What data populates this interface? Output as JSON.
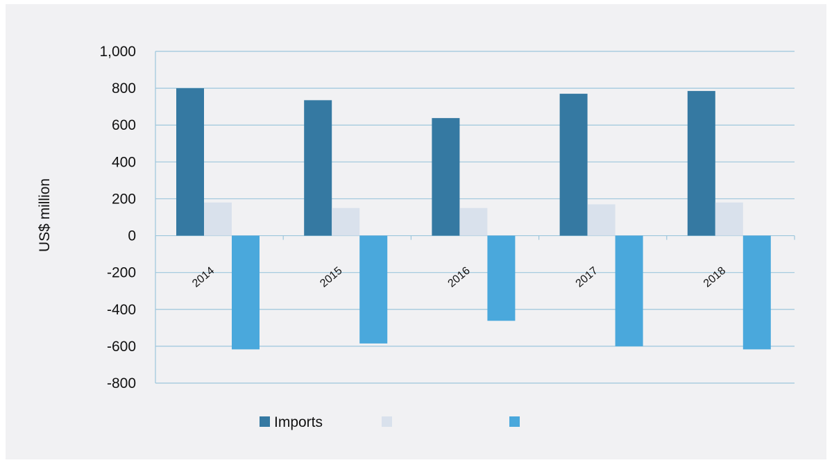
{
  "chart_data": {
    "type": "bar",
    "title": "",
    "xlabel": "",
    "ylabel": "US$ million",
    "categories": [
      "2014",
      "2015",
      "2016",
      "2017",
      "2018"
    ],
    "series": [
      {
        "name": "Imports",
        "color": "#3579a2",
        "values": [
          800,
          735,
          638,
          770,
          785
        ]
      },
      {
        "name": "",
        "color": "#d9e1ec",
        "values": [
          180,
          150,
          150,
          170,
          180
        ]
      },
      {
        "name": "",
        "color": "#4aa8dc",
        "values": [
          -617,
          -585,
          -462,
          -600,
          -617
        ]
      }
    ],
    "ylim": [
      -800,
      1000
    ],
    "y_ticks": [
      "1,000",
      "800",
      "600",
      "400",
      "200",
      "0",
      "-200",
      "-400",
      "-600",
      "-800"
    ],
    "y_tick_values": [
      1000,
      800,
      600,
      400,
      200,
      0,
      -200,
      -400,
      -600,
      -800
    ],
    "grid": true,
    "legend_position": "bottom"
  }
}
